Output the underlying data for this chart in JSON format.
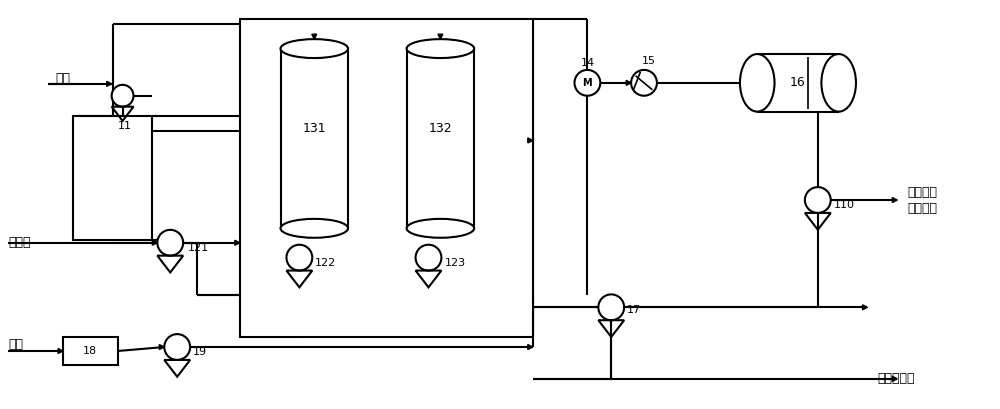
{
  "bg_color": "#ffffff",
  "line_color": "#000000",
  "line_width": 1.5,
  "fig_width": 10.0,
  "fig_height": 4.09,
  "dpi": 100,
  "labels": {
    "steam": "蒸汽",
    "butyraldehyde": "正丁醛",
    "alkali": "碱液",
    "product": "辛烯醛去\n加氢工序",
    "dilute_alkali": "稀碱液排放"
  },
  "eq_labels": [
    "11",
    "121",
    "122",
    "123",
    "131",
    "132",
    "14",
    "15",
    "16",
    "17",
    "18",
    "19",
    "110"
  ]
}
